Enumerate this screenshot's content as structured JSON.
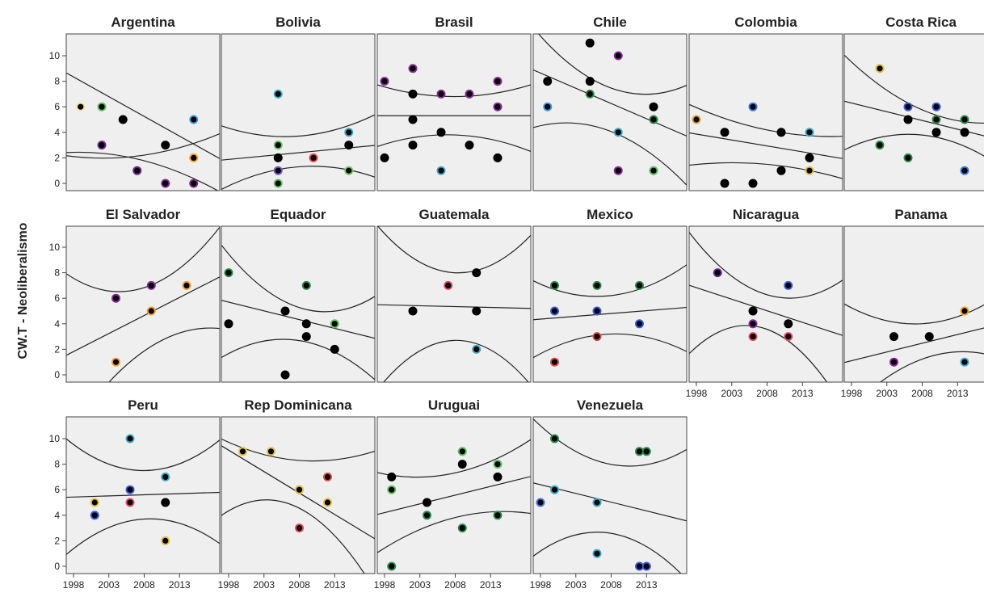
{
  "chart_data": {
    "type": "scatter",
    "title": "",
    "xlabel": "",
    "ylabel": "CW.T - Neoliberalismo",
    "x_ticks": [
      1998,
      2003,
      2008,
      2013
    ],
    "y_ticks": [
      0,
      2,
      4,
      6,
      8,
      10
    ],
    "xlim": [
      1997.5,
      2015.5
    ],
    "ylim": [
      -0.5,
      11.5
    ],
    "fit": "linear with confidence band",
    "grid": false,
    "colors": {
      "panel_bg": "#efefef",
      "frame": "#444444",
      "fit_line": "#222222"
    },
    "panels": [
      {
        "name": "Argentina",
        "fit": [
          8.8,
          1.8
        ],
        "band": [
          [
            2.2,
            2.2,
            4.0
          ],
          [
            2.4,
            1.8,
            -0.8
          ]
        ],
        "points": [
          {
            "x": 1999,
            "y": 6,
            "c": "#f2e2a0"
          },
          {
            "x": 2002,
            "y": 6,
            "c": "#5fbf5f"
          },
          {
            "x": 2005,
            "y": 5,
            "c": "#000000"
          },
          {
            "x": 2002,
            "y": 3,
            "c": "#6a2a8a"
          },
          {
            "x": 2011,
            "y": 3,
            "c": "#000000"
          },
          {
            "x": 2015,
            "y": 5,
            "c": "#3a9adf"
          },
          {
            "x": 2015,
            "y": 2,
            "c": "#f5a02a"
          },
          {
            "x": 2007,
            "y": 1,
            "c": "#6a2a8a"
          },
          {
            "x": 2011,
            "y": 0,
            "c": "#7a2a8a"
          },
          {
            "x": 2015,
            "y": 0,
            "c": "#7a2a8a"
          }
        ]
      },
      {
        "name": "Bolivia",
        "fit": [
          1.8,
          3.0
        ],
        "band": [
          [
            4.6,
            3.7,
            5.5
          ],
          [
            -0.6,
            1.3,
            0.4
          ]
        ],
        "points": [
          {
            "x": 2005,
            "y": 7,
            "c": "#3aaac8"
          },
          {
            "x": 2015,
            "y": 4,
            "c": "#3aaac8"
          },
          {
            "x": 2005,
            "y": 3,
            "c": "#5fbf5f"
          },
          {
            "x": 2015,
            "y": 3,
            "c": "#000000"
          },
          {
            "x": 2005,
            "y": 2,
            "c": "#000000"
          },
          {
            "x": 2010,
            "y": 2,
            "c": "#e04a4a"
          },
          {
            "x": 2005,
            "y": 1,
            "c": "#7a5ac0"
          },
          {
            "x": 2015,
            "y": 1,
            "c": "#7fc85f"
          },
          {
            "x": 2005,
            "y": 0,
            "c": "#5fbf5f"
          }
        ]
      },
      {
        "name": "Brasil",
        "fit": [
          5.3,
          5.3
        ],
        "band": [
          [
            7.8,
            6.8,
            7.8
          ],
          [
            2.8,
            3.8,
            2.4
          ]
        ],
        "points": [
          {
            "x": 1998,
            "y": 8,
            "c": "#8a2a9a"
          },
          {
            "x": 2002,
            "y": 9,
            "c": "#8a2a9a"
          },
          {
            "x": 2002,
            "y": 7,
            "c": "#000000"
          },
          {
            "x": 2006,
            "y": 7,
            "c": "#8a2a9a"
          },
          {
            "x": 2010,
            "y": 7,
            "c": "#8a2a9a"
          },
          {
            "x": 2014,
            "y": 8,
            "c": "#8a2a9a"
          },
          {
            "x": 2014,
            "y": 6,
            "c": "#8a2a9a"
          },
          {
            "x": 2002,
            "y": 5,
            "c": "#000000"
          },
          {
            "x": 2006,
            "y": 4,
            "c": "#000000"
          },
          {
            "x": 1998,
            "y": 2,
            "c": "#000000"
          },
          {
            "x": 2002,
            "y": 3,
            "c": "#000000"
          },
          {
            "x": 2010,
            "y": 3,
            "c": "#000000"
          },
          {
            "x": 2014,
            "y": 2,
            "c": "#000000"
          },
          {
            "x": 2006,
            "y": 1,
            "c": "#3aaac8"
          }
        ]
      },
      {
        "name": "Chile",
        "fit": [
          9.0,
          3.6
        ],
        "band": [
          [
            12.5,
            7.5,
            7.8
          ],
          [
            4.3,
            4.1,
            -0.4
          ]
        ],
        "points": [
          {
            "x": 1999,
            "y": 8,
            "c": "#000000"
          },
          {
            "x": 1999,
            "y": 6,
            "c": "#3a9adf"
          },
          {
            "x": 2005,
            "y": 11,
            "c": "#000000"
          },
          {
            "x": 2005,
            "y": 8,
            "c": "#000000"
          },
          {
            "x": 2005,
            "y": 7,
            "c": "#2a8a4a"
          },
          {
            "x": 2009,
            "y": 10,
            "c": "#8a2a9a"
          },
          {
            "x": 2009,
            "y": 4,
            "c": "#3aaac8"
          },
          {
            "x": 2009,
            "y": 1,
            "c": "#8a2a9a"
          },
          {
            "x": 2014,
            "y": 6,
            "c": "#000000"
          },
          {
            "x": 2014,
            "y": 5,
            "c": "#2a8a4a"
          },
          {
            "x": 2014,
            "y": 1,
            "c": "#5fbf5f"
          }
        ]
      },
      {
        "name": "Colombia",
        "fit": [
          4.0,
          1.9
        ],
        "band": [
          [
            6.3,
            4.2,
            3.7
          ],
          [
            1.4,
            1.5,
            0.3
          ]
        ],
        "points": [
          {
            "x": 1998,
            "y": 5,
            "c": "#e0a040"
          },
          {
            "x": 2002,
            "y": 4,
            "c": "#000000"
          },
          {
            "x": 2006,
            "y": 6,
            "c": "#3a7adf"
          },
          {
            "x": 2002,
            "y": 0,
            "c": "#000000"
          },
          {
            "x": 2006,
            "y": 0,
            "c": "#000000"
          },
          {
            "x": 2010,
            "y": 4,
            "c": "#000000"
          },
          {
            "x": 2014,
            "y": 4,
            "c": "#3aaac8"
          },
          {
            "x": 2010,
            "y": 1,
            "c": "#000000"
          },
          {
            "x": 2014,
            "y": 2,
            "c": "#000000"
          },
          {
            "x": 2014,
            "y": 1,
            "c": "#e0c040"
          }
        ]
      },
      {
        "name": "Costa Rica",
        "fit": [
          6.5,
          3.4
        ],
        "band": [
          [
            10.3,
            5.8,
            4.8
          ],
          [
            2.5,
            3.8,
            1.3
          ]
        ],
        "points": [
          {
            "x": 2002,
            "y": 9,
            "c": "#e0c040"
          },
          {
            "x": 2002,
            "y": 3,
            "c": "#2a8a4a"
          },
          {
            "x": 2006,
            "y": 6,
            "c": "#3a5adf"
          },
          {
            "x": 2006,
            "y": 5,
            "c": "#000000"
          },
          {
            "x": 2006,
            "y": 2,
            "c": "#2a8a4a"
          },
          {
            "x": 2010,
            "y": 6,
            "c": "#3a5adf"
          },
          {
            "x": 2010,
            "y": 5,
            "c": "#2a8a4a"
          },
          {
            "x": 2010,
            "y": 4,
            "c": "#000000"
          },
          {
            "x": 2014,
            "y": 5,
            "c": "#2a8a4a"
          },
          {
            "x": 2014,
            "y": 4,
            "c": "#000000"
          },
          {
            "x": 2014,
            "y": 1,
            "c": "#3a7adf"
          }
        ]
      },
      {
        "name": "El Salvador",
        "fit": [
          1.4,
          7.8
        ],
        "band": [
          [
            8.1,
            6.8,
            11.9
          ],
          [
            -5.3,
            1.8,
            3.6
          ]
        ],
        "points": [
          {
            "x": 2004,
            "y": 6,
            "c": "#8a2a9a"
          },
          {
            "x": 2004,
            "y": 1,
            "c": "#f5a02a"
          },
          {
            "x": 2009,
            "y": 7,
            "c": "#8a2a9a"
          },
          {
            "x": 2009,
            "y": 5,
            "c": "#f5a02a"
          },
          {
            "x": 2014,
            "y": 7,
            "c": "#f5a02a"
          }
        ]
      },
      {
        "name": "Equador",
        "fit": [
          5.9,
          2.8
        ],
        "band": [
          [
            10.5,
            5.3,
            6.3
          ],
          [
            1.2,
            2.7,
            -0.6
          ]
        ],
        "points": [
          {
            "x": 1998,
            "y": 4,
            "c": "#000000"
          },
          {
            "x": 1998,
            "y": 8,
            "c": "#2a8a4a"
          },
          {
            "x": 2006,
            "y": 5,
            "c": "#000000"
          },
          {
            "x": 2006,
            "y": 0,
            "c": "#000000"
          },
          {
            "x": 2009,
            "y": 7,
            "c": "#2a8a4a"
          },
          {
            "x": 2009,
            "y": 4,
            "c": "#000000"
          },
          {
            "x": 2009,
            "y": 3,
            "c": "#000000"
          },
          {
            "x": 2013,
            "y": 4,
            "c": "#5fbf5f"
          },
          {
            "x": 2013,
            "y": 2,
            "c": "#000000"
          }
        ]
      },
      {
        "name": "Guatemala",
        "fit": [
          5.5,
          5.2
        ],
        "band": [
          [
            12.0,
            8.0,
            11.2
          ],
          [
            -1.5,
            2.7,
            -1.1
          ]
        ],
        "points": [
          {
            "x": 2002,
            "y": 5,
            "c": "#000000"
          },
          {
            "x": 2007,
            "y": 7,
            "c": "#e04a6a"
          },
          {
            "x": 2011,
            "y": 8,
            "c": "#000000"
          },
          {
            "x": 2011,
            "y": 5,
            "c": "#000000"
          },
          {
            "x": 2011,
            "y": 2,
            "c": "#3aaac8"
          }
        ]
      },
      {
        "name": "Mexico",
        "fit": [
          4.3,
          5.3
        ],
        "band": [
          [
            7.5,
            6.2,
            8.8
          ],
          [
            1.2,
            3.2,
            1.7
          ]
        ],
        "points": [
          {
            "x": 2000,
            "y": 7,
            "c": "#2a8a4a"
          },
          {
            "x": 2000,
            "y": 5,
            "c": "#3a5adf"
          },
          {
            "x": 2000,
            "y": 1,
            "c": "#e04a4a"
          },
          {
            "x": 2006,
            "y": 7,
            "c": "#2a8a4a"
          },
          {
            "x": 2006,
            "y": 5,
            "c": "#3a5adf"
          },
          {
            "x": 2006,
            "y": 3,
            "c": "#e04a4a"
          },
          {
            "x": 2012,
            "y": 7,
            "c": "#2a8a4a"
          },
          {
            "x": 2012,
            "y": 4,
            "c": "#3a5adf"
          }
        ]
      },
      {
        "name": "Nicaragua",
        "fit": [
          7.1,
          3.0
        ],
        "band": [
          [
            11.5,
            6.3,
            7.6
          ],
          [
            1.4,
            3.6,
            -2.9
          ]
        ],
        "points": [
          {
            "x": 2001,
            "y": 8,
            "c": "#6a2a8a"
          },
          {
            "x": 2006,
            "y": 5,
            "c": "#000000"
          },
          {
            "x": 2006,
            "y": 4,
            "c": "#8a2a9a"
          },
          {
            "x": 2006,
            "y": 3,
            "c": "#e04a6a"
          },
          {
            "x": 2011,
            "y": 7,
            "c": "#3a5adf"
          },
          {
            "x": 2011,
            "y": 4,
            "c": "#000000"
          },
          {
            "x": 2011,
            "y": 3,
            "c": "#e04a6a"
          }
        ]
      },
      {
        "name": "Panama",
        "fit": [
          0.9,
          4.0
        ],
        "band": [
          [
            5.7,
            4.0,
            6.3
          ],
          [
            -3.4,
            1.2,
            1.3
          ]
        ],
        "points": [
          {
            "x": 2004,
            "y": 3,
            "c": "#000000"
          },
          {
            "x": 2004,
            "y": 1,
            "c": "#8a2a9a"
          },
          {
            "x": 2009,
            "y": 3,
            "c": "#000000"
          },
          {
            "x": 2014,
            "y": 5,
            "c": "#f5a02a"
          },
          {
            "x": 2014,
            "y": 1,
            "c": "#3aaac8"
          }
        ]
      },
      {
        "name": "Peru",
        "fit": [
          5.4,
          5.8
        ],
        "band": [
          [
            10.2,
            7.5,
            10.1
          ],
          [
            0.7,
            3.7,
            1.6
          ]
        ],
        "points": [
          {
            "x": 2001,
            "y": 5,
            "c": "#e0c040"
          },
          {
            "x": 2001,
            "y": 4,
            "c": "#3a5adf"
          },
          {
            "x": 2006,
            "y": 10,
            "c": "#3aaac8"
          },
          {
            "x": 2006,
            "y": 6,
            "c": "#3a5adf"
          },
          {
            "x": 2006,
            "y": 5,
            "c": "#e04a6a"
          },
          {
            "x": 2011,
            "y": 7,
            "c": "#3aaac8"
          },
          {
            "x": 2011,
            "y": 5,
            "c": "#000000"
          },
          {
            "x": 2011,
            "y": 2,
            "c": "#e0c040"
          }
        ]
      },
      {
        "name": "Rep Dominicana",
        "fit": [
          9.6,
          2.0
        ],
        "band": [
          [
            10.1,
            8.3,
            9.1
          ],
          [
            3.8,
            4.6,
            -2.3
          ]
        ],
        "points": [
          {
            "x": 2000,
            "y": 9,
            "c": "#e0c040"
          },
          {
            "x": 2004,
            "y": 9,
            "c": "#e0c040"
          },
          {
            "x": 2008,
            "y": 6,
            "c": "#e0c040"
          },
          {
            "x": 2008,
            "y": 3,
            "c": "#e04a4a"
          },
          {
            "x": 2012,
            "y": 7,
            "c": "#e04a4a"
          },
          {
            "x": 2012,
            "y": 5,
            "c": "#e0c040"
          }
        ]
      },
      {
        "name": "Uruguai",
        "fit": [
          4.0,
          7.1
        ],
        "band": [
          [
            7.4,
            7.3,
            10.1
          ],
          [
            0.9,
            3.8,
            4.1
          ]
        ],
        "points": [
          {
            "x": 1999,
            "y": 7,
            "c": "#000000"
          },
          {
            "x": 1999,
            "y": 6,
            "c": "#5fbf5f"
          },
          {
            "x": 1999,
            "y": 0,
            "c": "#2a8a4a"
          },
          {
            "x": 2004,
            "y": 5,
            "c": "#000000"
          },
          {
            "x": 2004,
            "y": 4,
            "c": "#2a8a4a"
          },
          {
            "x": 2009,
            "y": 9,
            "c": "#5fbf5f"
          },
          {
            "x": 2009,
            "y": 8,
            "c": "#000000"
          },
          {
            "x": 2009,
            "y": 3,
            "c": "#2a8a4a"
          },
          {
            "x": 2014,
            "y": 8,
            "c": "#5fbf5f"
          },
          {
            "x": 2014,
            "y": 7,
            "c": "#000000"
          },
          {
            "x": 2014,
            "y": 4,
            "c": "#2a8a4a"
          }
        ]
      },
      {
        "name": "Venezuela",
        "fit": [
          6.6,
          3.5
        ],
        "band": [
          [
            11.8,
            8.0,
            9.3
          ],
          [
            0.6,
            2.6,
            -1.3
          ]
        ],
        "points": [
          {
            "x": 1998,
            "y": 5,
            "c": "#3a7adf"
          },
          {
            "x": 2000,
            "y": 10,
            "c": "#2a8a4a"
          },
          {
            "x": 2000,
            "y": 6,
            "c": "#3aaac8"
          },
          {
            "x": 2006,
            "y": 5,
            "c": "#3aaac8"
          },
          {
            "x": 2006,
            "y": 1,
            "c": "#3aaac8"
          },
          {
            "x": 2012,
            "y": 9,
            "c": "#2a8a4a"
          },
          {
            "x": 2013,
            "y": 9,
            "c": "#2a8a4a"
          },
          {
            "x": 2012,
            "y": 0,
            "c": "#3a5adf"
          },
          {
            "x": 2013,
            "y": 0,
            "c": "#3a5adf"
          }
        ]
      }
    ]
  }
}
